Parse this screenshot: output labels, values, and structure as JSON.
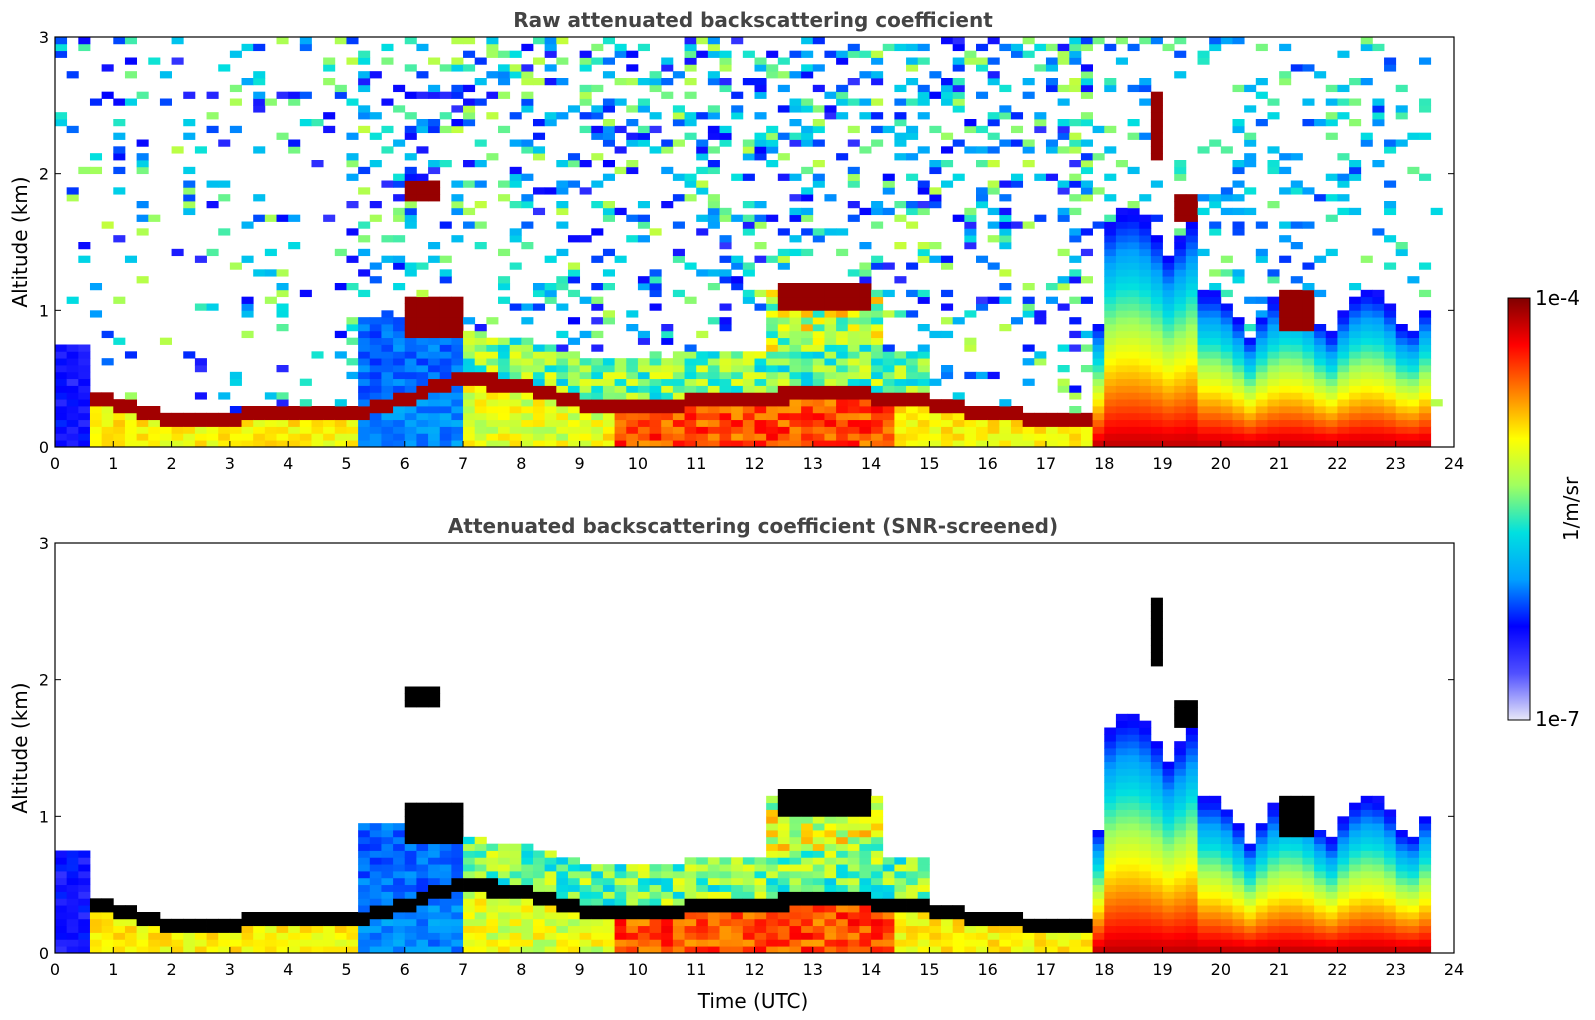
{
  "chart_data": [
    {
      "type": "heatmap",
      "title": "Raw attenuated backscattering coefficient",
      "xlabel": "",
      "ylabel": "Altitude (km)",
      "xlim": [
        0,
        24
      ],
      "ylim": [
        0,
        3
      ],
      "xticks": [
        "0",
        "1",
        "2",
        "3",
        "4",
        "5",
        "6",
        "7",
        "8",
        "9",
        "10",
        "11",
        "12",
        "13",
        "14",
        "15",
        "16",
        "17",
        "18",
        "19",
        "20",
        "21",
        "22",
        "23",
        "24"
      ],
      "yticks": [
        "0",
        "1",
        "2",
        "3"
      ],
      "screened": false
    },
    {
      "type": "heatmap",
      "title": "Attenuated backscattering coefficient (SNR-screened)",
      "xlabel": "Time (UTC)",
      "ylabel": "Altitude (km)",
      "xlim": [
        0,
        24
      ],
      "ylim": [
        0,
        3
      ],
      "xticks": [
        "0",
        "1",
        "2",
        "3",
        "4",
        "5",
        "6",
        "7",
        "8",
        "9",
        "10",
        "11",
        "12",
        "13",
        "14",
        "15",
        "16",
        "17",
        "18",
        "19",
        "20",
        "21",
        "22",
        "23",
        "24"
      ],
      "yticks": [
        "0",
        "1",
        "2",
        "3"
      ],
      "screened": true
    }
  ],
  "colorbar": {
    "label": "1/m/sr",
    "max_label": "1e-4",
    "min_label": "1e-7",
    "colors": [
      "#e8e8f8",
      "#5050ff",
      "#0000ff",
      "#00a0ff",
      "#00e0e0",
      "#a0ff60",
      "#ffff00",
      "#ff8000",
      "#ff0000",
      "#800000"
    ]
  },
  "layers": {
    "boundary_layer": [
      [
        0.6,
        0.35
      ],
      [
        1,
        0.33
      ],
      [
        2,
        0.2
      ],
      [
        3,
        0.22
      ],
      [
        4,
        0.25
      ],
      [
        5.2,
        0.25
      ],
      [
        7,
        0.5
      ],
      [
        8,
        0.45
      ],
      [
        9,
        0.32
      ],
      [
        10,
        0.3
      ],
      [
        11,
        0.33
      ],
      [
        12,
        0.35
      ],
      [
        13,
        0.4
      ],
      [
        14,
        0.38
      ],
      [
        15,
        0.32
      ],
      [
        16,
        0.25
      ],
      [
        17,
        0.2
      ],
      [
        17.8,
        0.18
      ]
    ],
    "clouds": [
      {
        "t0": 6.1,
        "t1": 6.6,
        "z0": 1.78,
        "z1": 1.95
      },
      {
        "t0": 6.0,
        "t1": 7.0,
        "z0": 0.8,
        "z1": 1.1
      },
      {
        "t0": 12.3,
        "t1": 14.1,
        "z0": 1.0,
        "z1": 1.2
      },
      {
        "t0": 18.8,
        "t1": 19.0,
        "z0": 2.1,
        "z1": 2.6
      },
      {
        "t0": 19.1,
        "t1": 19.5,
        "z0": 1.65,
        "z1": 1.85
      },
      {
        "t0": 21.0,
        "t1": 21.6,
        "z0": 0.85,
        "z1": 1.15
      }
    ]
  }
}
